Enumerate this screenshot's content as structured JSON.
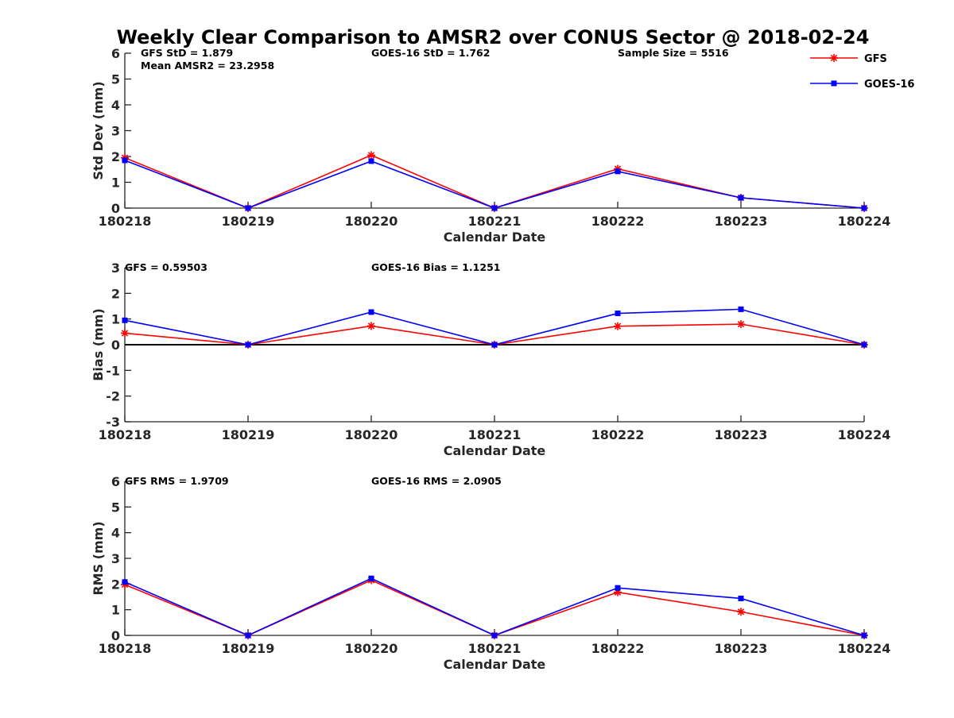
{
  "title": "Weekly Clear Comparison to AMSR2 over CONUS Sector @ 2018-02-24",
  "colors": {
    "gfs": "#ff0000",
    "goes16": "#0000ff",
    "axis": "#262626",
    "zero_line": "#000000"
  },
  "legend": {
    "placement": "top-right",
    "items": [
      {
        "label": "GFS",
        "color": "#ff0000",
        "marker": "asterisk"
      },
      {
        "label": "GOES-16",
        "color": "#0000ff",
        "marker": "square"
      }
    ]
  },
  "chart_data": [
    {
      "type": "line",
      "xlabel": "Calendar Date",
      "ylabel": "Std Dev (mm)",
      "categories": [
        "180218",
        "180219",
        "180220",
        "180221",
        "180222",
        "180223",
        "180224"
      ],
      "ylim": [
        0,
        6
      ],
      "yticks": [
        "0",
        "1",
        "2",
        "3",
        "4",
        "5",
        "6"
      ],
      "series": [
        {
          "name": "GFS",
          "color": "#ff0000",
          "marker": "asterisk",
          "values": [
            1.95,
            0.0,
            2.05,
            0.0,
            1.52,
            0.4,
            0.0
          ]
        },
        {
          "name": "GOES-16",
          "color": "#0000ff",
          "marker": "square",
          "values": [
            1.85,
            0.0,
            1.82,
            0.0,
            1.42,
            0.4,
            0.0
          ]
        }
      ],
      "annotations": [
        "GFS StD = 1.879",
        "Mean AMSR2 = 23.2958",
        "GOES-16 StD = 1.762",
        "Sample Size = 5516"
      ],
      "zero_line": false
    },
    {
      "type": "line",
      "xlabel": "Calendar Date",
      "ylabel": "Bias (mm)",
      "categories": [
        "180218",
        "180219",
        "180220",
        "180221",
        "180222",
        "180223",
        "180224"
      ],
      "ylim": [
        -3,
        3
      ],
      "yticks": [
        "-3",
        "-2",
        "-1",
        "0",
        "1",
        "2",
        "3"
      ],
      "series": [
        {
          "name": "GFS",
          "color": "#ff0000",
          "marker": "asterisk",
          "values": [
            0.45,
            0.0,
            0.73,
            0.0,
            0.72,
            0.8,
            0.0
          ]
        },
        {
          "name": "GOES-16",
          "color": "#0000ff",
          "marker": "square",
          "values": [
            0.95,
            0.0,
            1.27,
            0.0,
            1.22,
            1.38,
            0.0
          ]
        }
      ],
      "annotations": [
        "GFS = 0.59503",
        "GOES-16 Bias  = 1.1251"
      ],
      "zero_line": true
    },
    {
      "type": "line",
      "xlabel": "Calendar Date",
      "ylabel": "RMS (mm)",
      "categories": [
        "180218",
        "180219",
        "180220",
        "180221",
        "180222",
        "180223",
        "180224"
      ],
      "ylim": [
        0,
        6
      ],
      "yticks": [
        "0",
        "1",
        "2",
        "3",
        "4",
        "5",
        "6"
      ],
      "series": [
        {
          "name": "GFS",
          "color": "#ff0000",
          "marker": "asterisk",
          "values": [
            1.98,
            0.0,
            2.15,
            0.0,
            1.68,
            0.92,
            0.0
          ]
        },
        {
          "name": "GOES-16",
          "color": "#0000ff",
          "marker": "square",
          "values": [
            2.08,
            0.0,
            2.22,
            0.0,
            1.85,
            1.44,
            0.0
          ]
        }
      ],
      "annotations": [
        "GFS RMS = 1.9709",
        "GOES-16 RMS = 2.0905"
      ],
      "zero_line": false
    }
  ]
}
